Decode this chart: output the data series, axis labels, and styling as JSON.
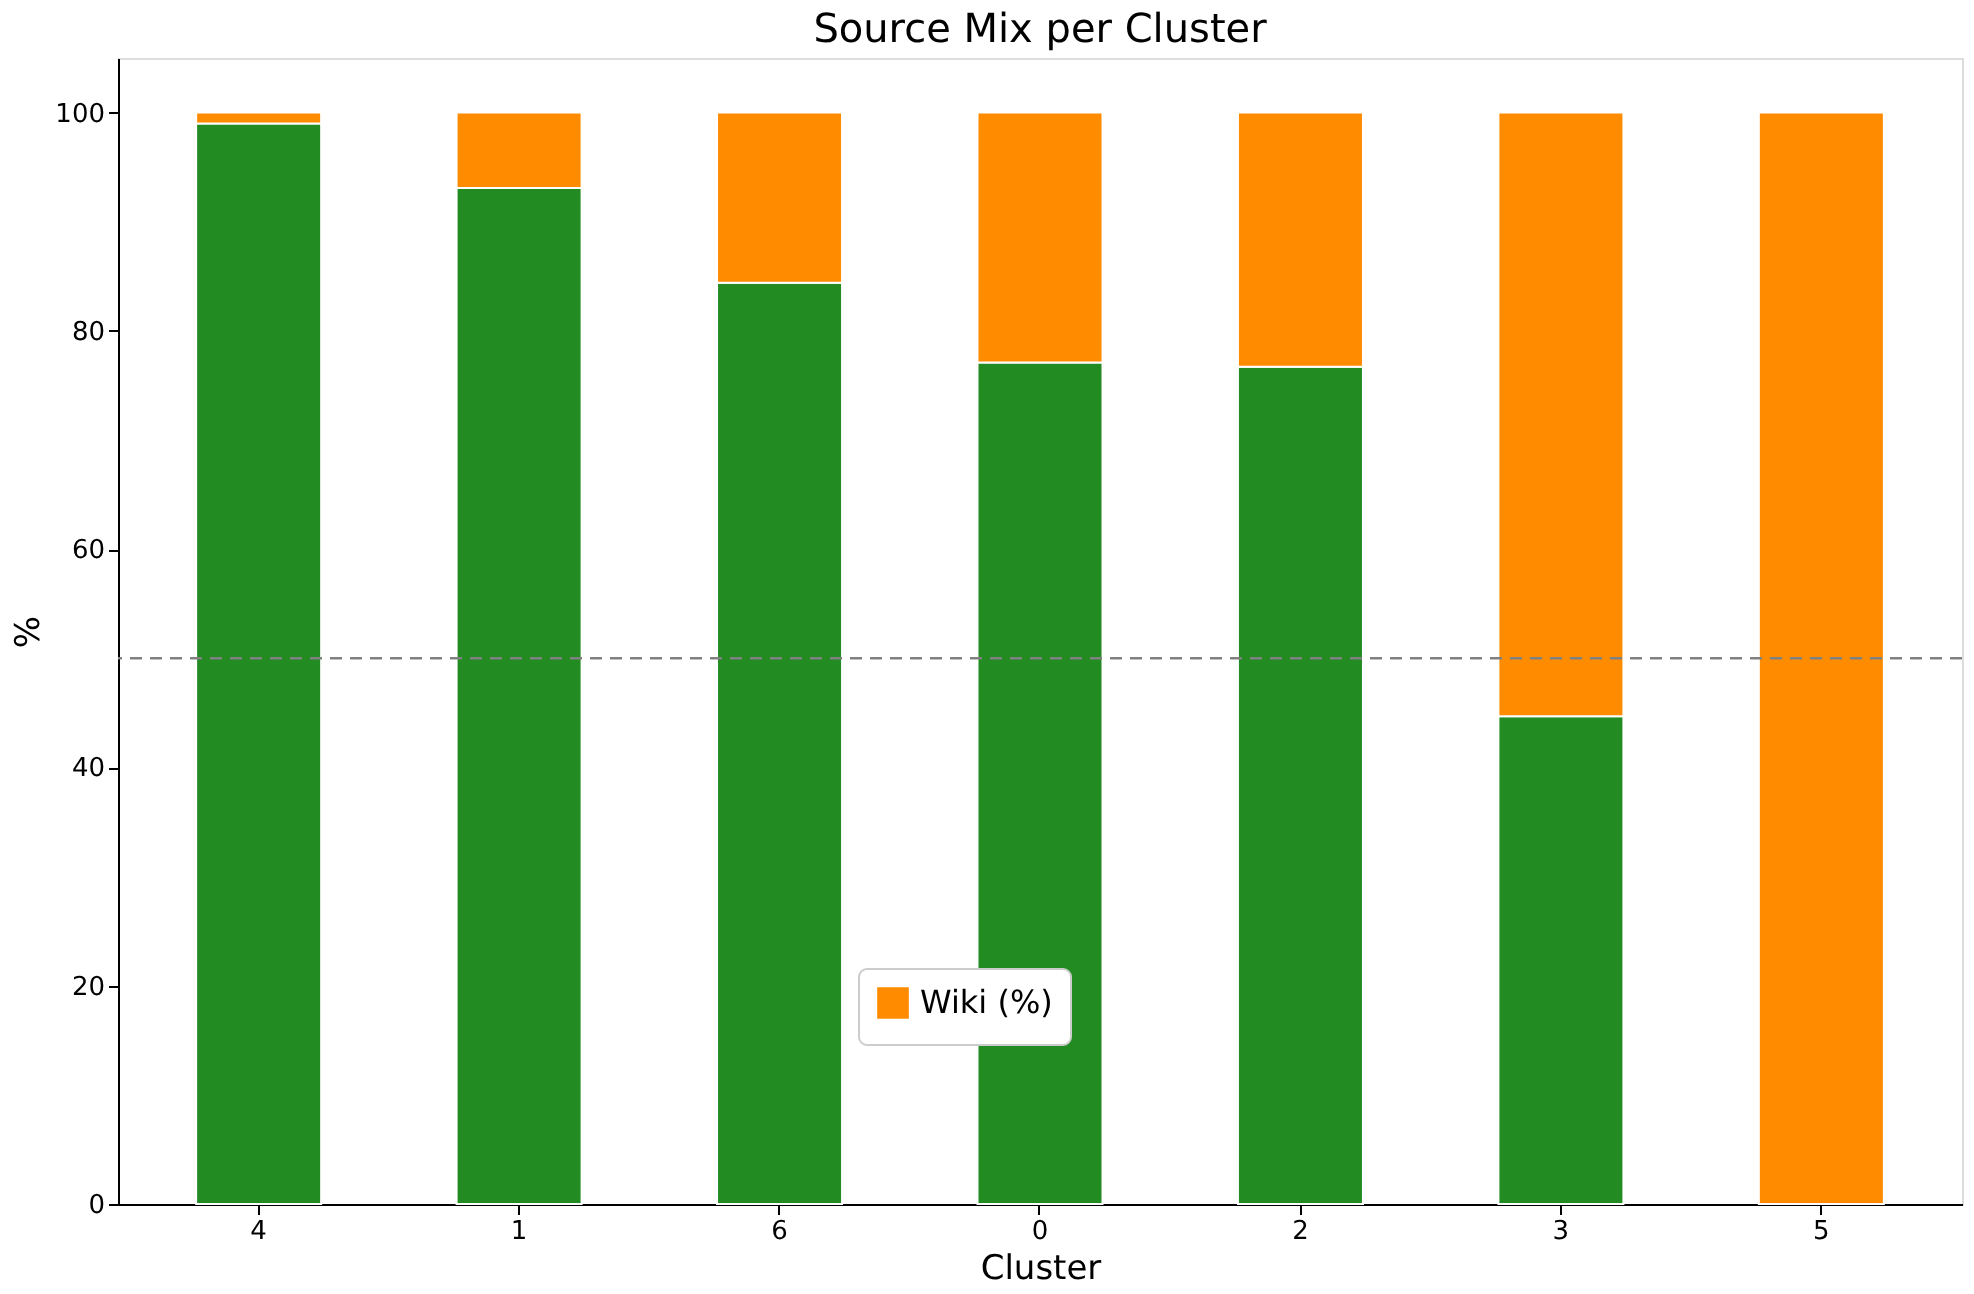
{
  "chart_data": {
    "type": "bar",
    "title": "Source Mix per Cluster",
    "xlabel": "Cluster",
    "ylabel": "%",
    "categories": [
      "4",
      "1",
      "6",
      "0",
      "2",
      "3",
      "5"
    ],
    "stacked": true,
    "series": [
      {
        "color": "#228b22",
        "values": [
          99.0,
          93.1,
          84.4,
          77.1,
          76.7,
          44.7,
          0
        ]
      },
      {
        "name": "Wiki (%)",
        "color": "#ff8c00",
        "values": [
          1.0,
          6.9,
          15.6,
          22.9,
          23.3,
          55.3,
          100
        ]
      }
    ],
    "ylim": [
      0,
      105
    ],
    "yticks": [
      0,
      20,
      40,
      60,
      80,
      100
    ],
    "ref_lines": [
      {
        "axis": "y",
        "value": 50,
        "color": "#808080",
        "line_style": "dashed"
      }
    ],
    "grid": false,
    "legend": "bottom"
  }
}
